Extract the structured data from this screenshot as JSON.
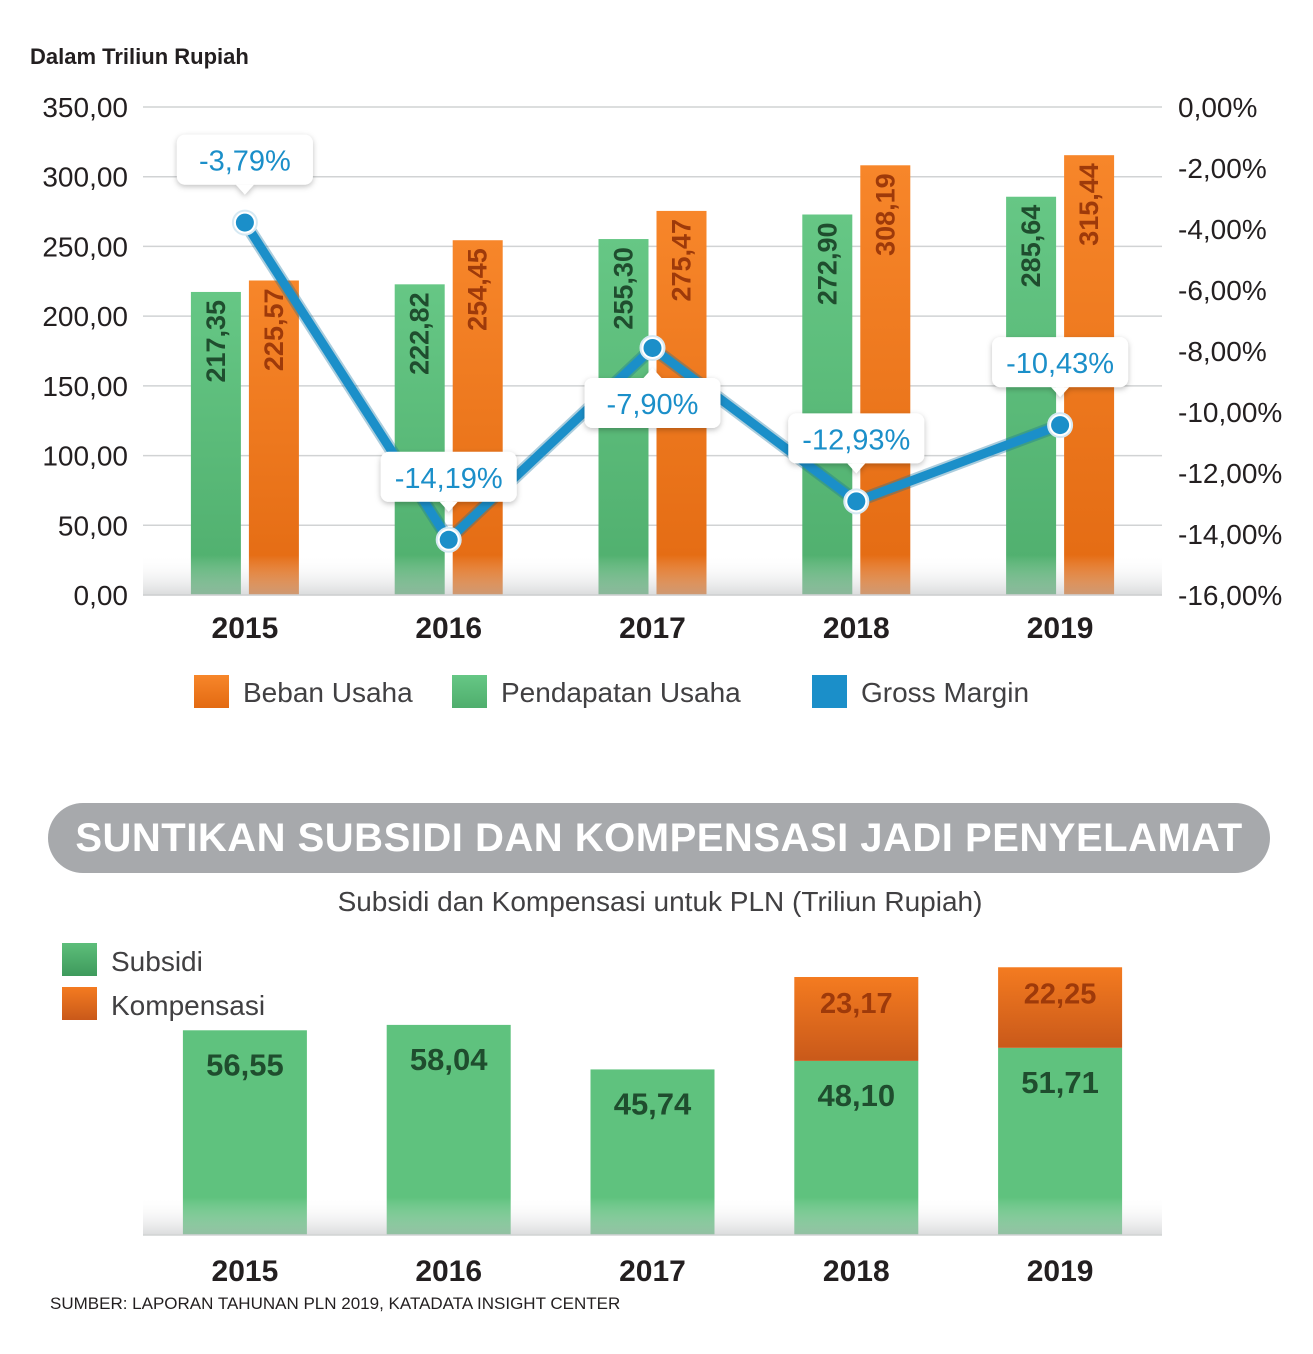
{
  "banner_title": "SUNTIKAN SUBSIDI DAN KOMPENSASI JADI PENYELAMAT",
  "source": "SUMBER: LAPORAN TAHUNAN PLN 2019, KATADATA INSIGHT CENTER",
  "colors": {
    "green": "#5dbe7a",
    "green_label": "#1f4d2e",
    "orange": "#f47b20",
    "orange_label": "#9e3a0a",
    "blue": "#1b8fc9",
    "blue_label": "#1b8fc9",
    "grid": "#d1d3d4",
    "text": "#231f20",
    "banner": "#a7a9ac"
  },
  "chart_data": [
    {
      "type": "bar",
      "title": "",
      "unit_label": "Dalam Triliun Rupiah",
      "categories": [
        "2015",
        "2016",
        "2017",
        "2018",
        "2019"
      ],
      "ylim": [
        0,
        350
      ],
      "y_ticks": [
        "0,00",
        "50,00",
        "100,00",
        "150,00",
        "200,00",
        "250,00",
        "300,00",
        "350,00"
      ],
      "y2lim": [
        -16,
        0
      ],
      "y2_ticks": [
        "-16,00%",
        "-14,00%",
        "-12,00%",
        "-10,00%",
        "-8,00%",
        "-6,00%",
        "-4,00%",
        "-2,00%",
        "0,00%"
      ],
      "series": [
        {
          "name": "Pendapatan Usaha",
          "values": [
            217.35,
            222.82,
            255.3,
            272.9,
            285.64
          ],
          "labels": [
            "217,35",
            "222,82",
            "255,30",
            "272,90",
            "285,64"
          ],
          "color": "green"
        },
        {
          "name": "Beban Usaha",
          "values": [
            225.57,
            254.45,
            275.47,
            308.19,
            315.44
          ],
          "labels": [
            "225,57",
            "254,45",
            "275,47",
            "308,19",
            "315,44"
          ],
          "color": "orange"
        },
        {
          "name": "Gross Margin",
          "type": "line",
          "axis": "right",
          "values": [
            -3.79,
            -14.19,
            -7.9,
            -12.93,
            -10.43
          ],
          "labels": [
            "-3,79%",
            "-14,19%",
            "-7,90%",
            "-12,93%",
            "-10,43%"
          ],
          "color": "blue"
        }
      ],
      "legend": [
        "Beban Usaha",
        "Pendapatan Usaha",
        "Gross Margin"
      ],
      "legend_position": "bottom",
      "grid": true
    },
    {
      "type": "bar",
      "stacked": true,
      "title": "Subsidi dan Kompensasi untuk PLN (Triliun Rupiah)",
      "categories": [
        "2015",
        "2016",
        "2017",
        "2018",
        "2019"
      ],
      "series": [
        {
          "name": "Subsidi",
          "values": [
            56.55,
            58.04,
            45.74,
            48.1,
            51.71
          ],
          "labels": [
            "56,55",
            "58,04",
            "45,74",
            "48,10",
            "51,71"
          ],
          "color": "green"
        },
        {
          "name": "Kompensasi",
          "values": [
            0,
            0,
            0,
            23.17,
            22.25
          ],
          "labels": [
            "",
            "",
            "",
            "23,17",
            "22,25"
          ],
          "color": "orange"
        }
      ],
      "legend": [
        "Subsidi",
        "Kompensasi"
      ],
      "legend_position": "top-left",
      "grid": false
    }
  ]
}
